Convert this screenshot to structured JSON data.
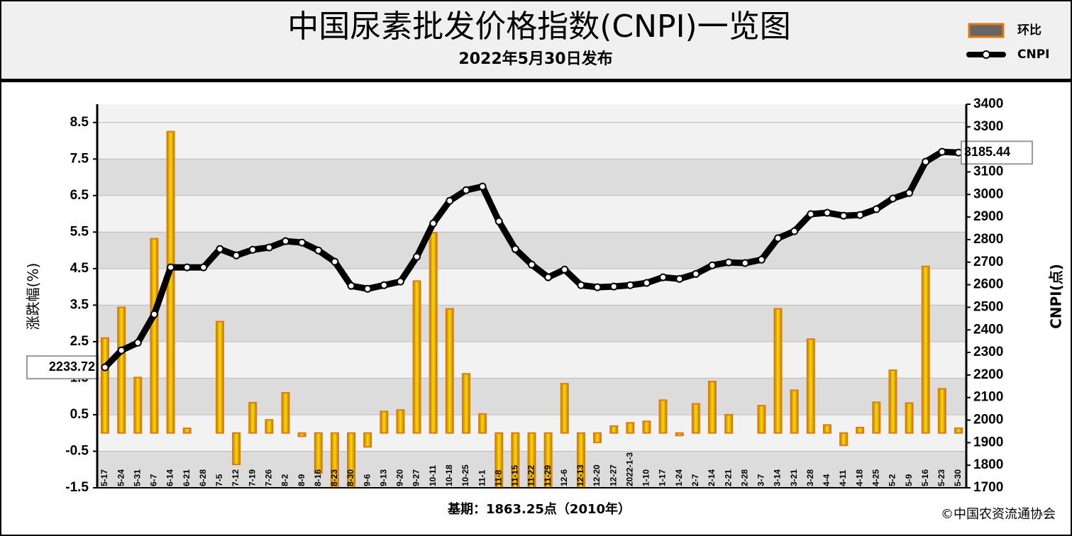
{
  "chart_data": {
    "type": "bar-line",
    "title": "中国尿素批发价格指数(CNPI)一览图",
    "subtitle": "2022年5月30日发布",
    "ylabel": "涨跌幅(%)",
    "y2label": "CNPI(点)",
    "footnote": "基期：1863.25点（2010年）",
    "source": "©中国农资流通协会",
    "categories": [
      "5-17",
      "5-24",
      "5-31",
      "6-7",
      "6-14",
      "6-21",
      "6-28",
      "7-5",
      "7-12",
      "7-19",
      "7-26",
      "8-2",
      "8-9",
      "8-16",
      "8-23",
      "8-30",
      "9-6",
      "9-13",
      "9-20",
      "9-27",
      "10-11",
      "10-18",
      "10-25",
      "11-1",
      "11-8",
      "11-15",
      "11-22",
      "11-29",
      "12-6",
      "12-13",
      "12-20",
      "12-27",
      "2022-1-3",
      "1-10",
      "1-17",
      "1-24",
      "2-7",
      "2-14",
      "2-21",
      "2-28",
      "3-7",
      "3-14",
      "3-21",
      "3-28",
      "4-4",
      "4-11",
      "4-18",
      "4-25",
      "5-2",
      "5-9",
      "5-16",
      "5-23",
      "5-30"
    ],
    "series": [
      {
        "name": "环比",
        "type": "bar",
        "color": "#e07a10",
        "values": [
          2.6,
          3.44,
          1.52,
          5.32,
          8.25,
          0.13,
          0,
          3.05,
          -0.86,
          0.83,
          0.36,
          1.1,
          -0.09,
          -1.1,
          -1.5,
          -1.5,
          -0.38,
          0.59,
          0.63,
          4.16,
          5.48,
          3.4,
          1.62,
          0.52,
          -1.5,
          -1.5,
          -1.5,
          -1.5,
          1.35,
          -1.5,
          -0.26,
          0.19,
          0.28,
          0.32,
          0.9,
          -0.07,
          0.8,
          1.41,
          0.5,
          0,
          0.75,
          3.4,
          1.17,
          2.57,
          0.22,
          -0.34,
          0.15,
          0.84,
          1.72,
          0.82,
          4.56,
          1.21,
          0.13
        ]
      },
      {
        "name": "CNPI",
        "type": "line",
        "axis": "y2",
        "color": "#000000",
        "values": [
          2233.72,
          2309,
          2343,
          2469,
          2677,
          2677,
          2677,
          2758,
          2730,
          2755,
          2765,
          2793,
          2787,
          2752,
          2702,
          2595,
          2582,
          2598,
          2614,
          2724,
          2872,
          2972,
          3019,
          3035,
          2881,
          2758,
          2689,
          2633,
          2667,
          2598,
          2589,
          2592,
          2598,
          2608,
          2633,
          2626,
          2648,
          2686,
          2699,
          2696,
          2711,
          2806,
          2837,
          2913,
          2919,
          2906,
          2909,
          2935,
          2982,
          3007,
          3145,
          3189,
          3185.44
        ]
      }
    ],
    "ylim": [
      -1.5,
      9
    ],
    "yticks": [
      -1.5,
      -0.5,
      0.5,
      1.5,
      2.5,
      3.5,
      4.5,
      5.5,
      6.5,
      7.5,
      8.5
    ],
    "y2lim": [
      1700,
      3400
    ],
    "y2ticks": [
      1700,
      1800,
      1900,
      2000,
      2100,
      2200,
      2300,
      2400,
      2500,
      2600,
      2700,
      2800,
      2900,
      3000,
      3100,
      3200,
      3300,
      3400
    ],
    "grid": true,
    "legend": "top-right"
  }
}
